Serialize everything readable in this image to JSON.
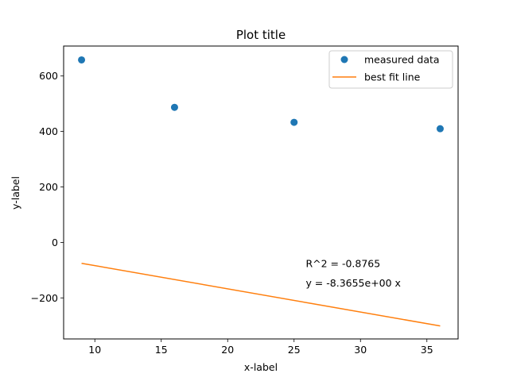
{
  "chart_data": {
    "type": "scatter",
    "title": "Plot title",
    "xlabel": "x-label",
    "ylabel": "y-label",
    "xlim": [
      7.65,
      37.35
    ],
    "ylim": [
      -348,
      708
    ],
    "xticks": [
      10,
      15,
      20,
      25,
      30,
      35
    ],
    "xtick_labels": [
      "10",
      "15",
      "20",
      "25",
      "30",
      "35"
    ],
    "yticks": [
      -200,
      0,
      200,
      400,
      600
    ],
    "ytick_labels": [
      "−200",
      "0",
      "200",
      "400",
      "600"
    ],
    "grid": false,
    "legend_position": "top-right",
    "series": [
      {
        "name": "measured data",
        "kind": "scatter",
        "color": "#1f77b4",
        "x": [
          9,
          16,
          25,
          36
        ],
        "y": [
          658,
          487,
          433,
          410
        ]
      },
      {
        "name": "best fit line",
        "kind": "line",
        "color": "#ff7f0e",
        "x": [
          9,
          36
        ],
        "y": [
          -75.3,
          -301.2
        ]
      }
    ],
    "annotations": [
      {
        "text": "R^2 = -0.8765",
        "x": 26,
        "y": -75
      },
      {
        "text": "y = -8.3655e+00 x",
        "x": 26,
        "y": -145
      }
    ]
  }
}
